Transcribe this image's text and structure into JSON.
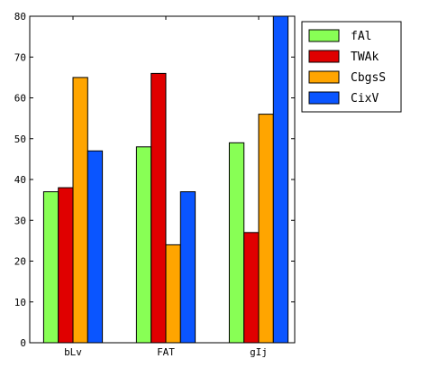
{
  "chart_data": {
    "type": "bar",
    "title": "",
    "xlabel": "",
    "ylabel": "",
    "categories": [
      "bLv",
      "FAT",
      "gIj"
    ],
    "series": [
      {
        "name": "fAl",
        "color": "#88ff55",
        "values": [
          37,
          48,
          49
        ]
      },
      {
        "name": "TWAk",
        "color": "#e00000",
        "values": [
          38,
          66,
          27
        ]
      },
      {
        "name": "CbgsS",
        "color": "#ffa500",
        "values": [
          65,
          24,
          56
        ]
      },
      {
        "name": "CixV",
        "color": "#0a55ff",
        "values": [
          47,
          37,
          80
        ]
      }
    ],
    "ylim": [
      0,
      80
    ],
    "yticks": [
      0,
      10,
      20,
      30,
      40,
      50,
      60,
      70,
      80
    ],
    "grid": false,
    "legend_position": "top-right"
  }
}
